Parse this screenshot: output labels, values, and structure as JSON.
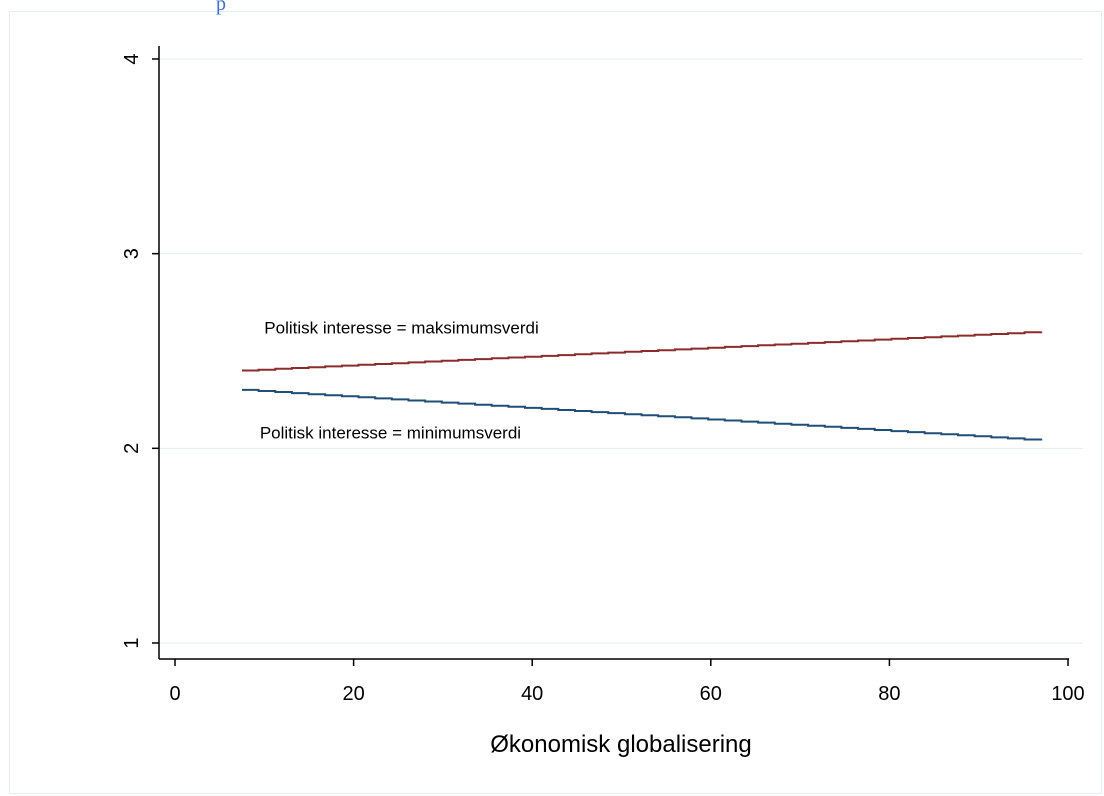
{
  "top_fragment": "p",
  "chart_data": {
    "type": "line",
    "title": "",
    "xlabel": "Økonomisk globalisering",
    "ylabel": "",
    "xlim": [
      0,
      100
    ],
    "ylim": [
      1,
      4
    ],
    "xticks": [
      0,
      20,
      40,
      60,
      80,
      100
    ],
    "yticks": [
      1,
      2,
      3,
      4
    ],
    "grid": "horizontal",
    "series": [
      {
        "label": "Politisk interesse = maksimumsverdi",
        "color": "#8b2b2b",
        "x": [
          7.5,
          97
        ],
        "y": [
          2.4,
          2.6
        ],
        "label_at": [
          10,
          2.59
        ]
      },
      {
        "label": "Politisk interesse = minimumsverdi",
        "color": "#1f4e79",
        "x": [
          7.5,
          97
        ],
        "y": [
          2.3,
          2.04
        ],
        "label_at": [
          9.5,
          2.05
        ]
      }
    ]
  }
}
